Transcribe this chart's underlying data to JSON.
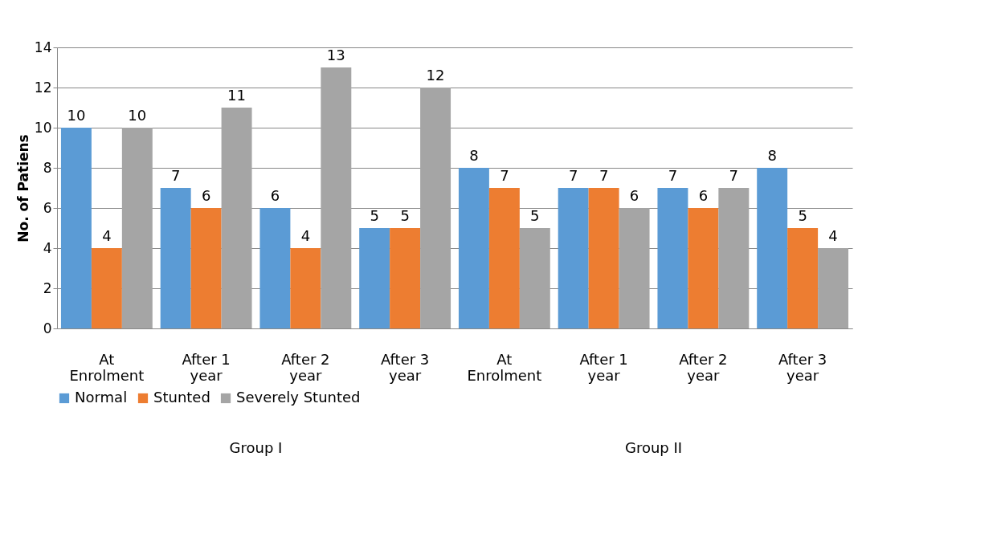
{
  "chart_data": {
    "type": "bar",
    "ylabel": "No. of Patiens",
    "categories": [
      "At Enrolment",
      "After 1 year",
      "After 2 year",
      "After 3 year",
      "At Enrolment",
      "After 1 year",
      "After 2 year",
      "After 3 year"
    ],
    "annotations": [
      "Group I",
      "Group II"
    ],
    "series": [
      {
        "name": "Normal",
        "color": "#5b9bd5",
        "values": [
          10,
          7,
          6,
          5,
          8,
          7,
          7,
          8
        ]
      },
      {
        "name": "Stunted",
        "color": "#ed7d31",
        "values": [
          4,
          6,
          4,
          5,
          7,
          7,
          6,
          5
        ]
      },
      {
        "name": "Severely Stunted",
        "color": "#a5a5a5",
        "values": [
          10,
          11,
          13,
          12,
          5,
          6,
          7,
          4
        ]
      }
    ],
    "ylim": [
      0,
      14
    ],
    "yticks": [
      0,
      2,
      4,
      6,
      8,
      10,
      12,
      14
    ],
    "grid": "y",
    "legend": "bottom",
    "data_labels": true
  }
}
